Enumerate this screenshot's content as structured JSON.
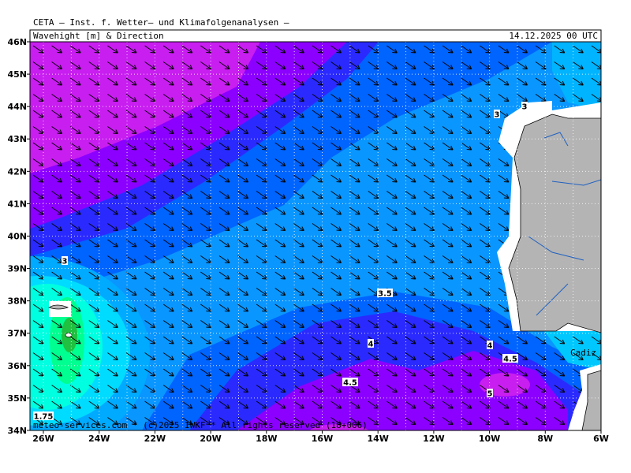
{
  "header": {
    "institute": "CETA — Inst. f. Wetter— und Klimafolgenanalysen —",
    "title": "Wavehight [m] & Direction",
    "date": "14.12.2025 00 UTC"
  },
  "axes": {
    "lat_labels": [
      "46N",
      "45N",
      "44N",
      "43N",
      "42N",
      "41N",
      "40N",
      "39N",
      "38N",
      "37N",
      "36N",
      "35N",
      "34N"
    ],
    "lon_labels": [
      "26W",
      "24W",
      "22W",
      "20W",
      "18W",
      "16W",
      "14W",
      "12W",
      "10W",
      "8W",
      "6W"
    ]
  },
  "contour_labels": [
    "3",
    "3",
    "3",
    "3.5",
    "4",
    "4",
    "4.5",
    "4.5",
    "5",
    "1.75"
  ],
  "place": "Cadiz",
  "footer": "meteo-services.com * (c)2025 IWKF * All rights reserved (18+006)"
}
